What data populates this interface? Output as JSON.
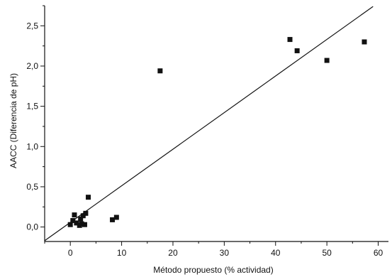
{
  "chart_data": {
    "type": "scatter",
    "title": "",
    "xlabel": "Método propuesto (% actividad)",
    "ylabel": "AACC (Diferencia de pH)",
    "xlim": [
      -5,
      62
    ],
    "ylim": [
      -0.18,
      2.75
    ],
    "x_ticks": [
      0,
      10,
      20,
      30,
      40,
      50,
      60
    ],
    "x_tick_labels": [
      "0",
      "10",
      "20",
      "30",
      "40",
      "50",
      "60"
    ],
    "y_ticks": [
      0.0,
      0.5,
      1.0,
      1.5,
      2.0,
      2.5
    ],
    "y_tick_labels": [
      "0,0",
      "0,5",
      "1,0",
      "1,5",
      "2,0",
      "2,5"
    ],
    "grid": false,
    "legend": "none",
    "series": [
      {
        "points": [
          {
            "x": 0.0,
            "y": 0.03
          },
          {
            "x": 0.5,
            "y": 0.08
          },
          {
            "x": 0.8,
            "y": 0.15
          },
          {
            "x": 1.2,
            "y": 0.05
          },
          {
            "x": 1.8,
            "y": 0.02
          },
          {
            "x": 2.0,
            "y": 0.1
          },
          {
            "x": 2.2,
            "y": 0.04
          },
          {
            "x": 2.5,
            "y": 0.14
          },
          {
            "x": 2.8,
            "y": 0.03
          },
          {
            "x": 3.0,
            "y": 0.17
          },
          {
            "x": 3.5,
            "y": 0.37
          },
          {
            "x": 8.2,
            "y": 0.09
          },
          {
            "x": 9.0,
            "y": 0.12
          },
          {
            "x": 17.5,
            "y": 1.94
          },
          {
            "x": 42.8,
            "y": 2.33
          },
          {
            "x": 44.2,
            "y": 2.19
          },
          {
            "x": 50.0,
            "y": 2.07
          },
          {
            "x": 57.3,
            "y": 2.3
          }
        ]
      }
    ],
    "fit_line": {
      "x0": -5.0,
      "y0": -0.17,
      "x1": 59.0,
      "y1": 2.74
    },
    "colors": {
      "points": "#111111",
      "line": "#111111",
      "axes": "#111111"
    }
  }
}
